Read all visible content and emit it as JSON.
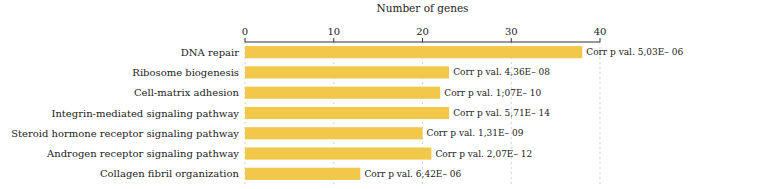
{
  "chart_data": {
    "type": "bar",
    "orientation": "horizontal",
    "x_label": "Number of genes",
    "categories": [
      "Collagen fibril organization",
      "Androgen receptor signaling pathway",
      "Steroid hormone receptor signaling pathway",
      "Integrin-mediated signaling pathway",
      "Cell-matrix adhesion",
      "Ribosome biogenesis",
      "DNA repair"
    ],
    "values": [
      13,
      21,
      20,
      23,
      22,
      23,
      38
    ],
    "annotations": [
      "Corr p val. 6,42E– 06",
      "Corr p val. 2,07E– 12",
      "Corr p val. 1,31E– 09",
      "Corr p val. 5,71E– 14",
      "Corr p val. 1;07E– 10",
      "Corr p val. 4,36E– 08",
      "Corr p val. 5,03E– 06"
    ],
    "color": "#F2C84B",
    "xlim": [
      0,
      40
    ],
    "xticks": [
      0,
      10,
      20,
      30,
      40
    ],
    "grid": true
  }
}
